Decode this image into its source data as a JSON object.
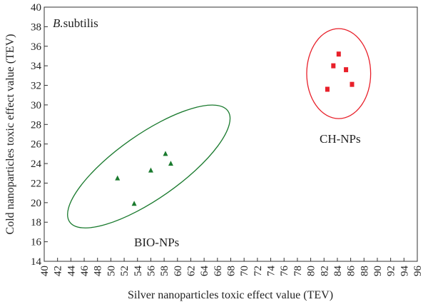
{
  "chart_data": {
    "type": "scatter",
    "xlabel": "Silver nanoparticles toxic effect value (TEV)",
    "ylabel": "Cold nanoparticles toxic effect value (TEV)",
    "xlim": [
      40,
      96
    ],
    "ylim": [
      14,
      40
    ],
    "x_ticks": [
      "40",
      "42",
      "44",
      "46",
      "48",
      "50",
      "52",
      "54",
      "56",
      "58",
      "60",
      "62",
      "64",
      "66",
      "68",
      "70",
      "72",
      "74",
      "76",
      "78",
      "80",
      "82",
      "84",
      "86",
      "88",
      "90",
      "92",
      "94",
      "96"
    ],
    "y_ticks": [
      "14",
      "16",
      "18",
      "20",
      "22",
      "24",
      "26",
      "28",
      "30",
      "32",
      "34",
      "36",
      "38",
      "40"
    ],
    "grid": false,
    "annotations": {
      "organism_italic": "B.",
      "organism_rest": "subtilis",
      "bio_label": "BIO-NPs",
      "ch_label": "CH-NPs"
    },
    "series": [
      {
        "marker": "triangle",
        "color": "#1a7a2e",
        "points": [
          {
            "x": 51.0,
            "y": 22.5
          },
          {
            "x": 53.5,
            "y": 19.9
          },
          {
            "x": 56.0,
            "y": 23.3
          },
          {
            "x": 58.2,
            "y": 25.0
          },
          {
            "x": 59.0,
            "y": 24.0
          }
        ],
        "cluster_ellipse": {
          "cx": 55.7,
          "cy": 23.7,
          "rx": 14.5,
          "ry": 3.3,
          "rotation_deg": -35,
          "color": "#1a7a2e"
        }
      },
      {
        "marker": "square",
        "color": "#e8202a",
        "points": [
          {
            "x": 82.5,
            "y": 31.6
          },
          {
            "x": 83.4,
            "y": 34.0
          },
          {
            "x": 84.2,
            "y": 35.2
          },
          {
            "x": 85.3,
            "y": 33.6
          },
          {
            "x": 86.2,
            "y": 32.1
          }
        ],
        "cluster_ellipse": {
          "cx": 84.2,
          "cy": 33.2,
          "rx": 4.8,
          "ry": 4.6,
          "rotation_deg": 0,
          "color": "#e8202a"
        }
      }
    ]
  }
}
